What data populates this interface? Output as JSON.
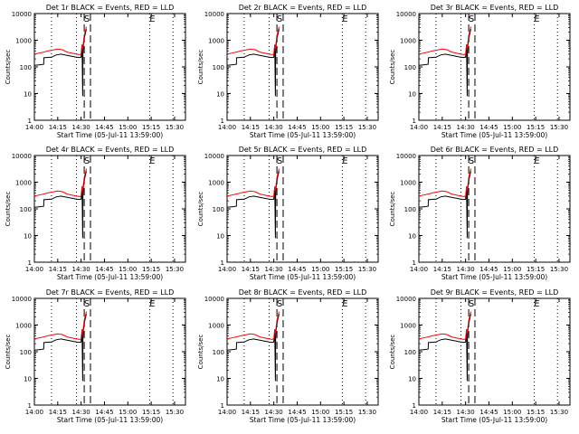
{
  "colors": {
    "events": "#000000",
    "lld": "#ff0000",
    "frame": "#000000"
  },
  "chart_data": [
    {
      "type": "line",
      "title": "Det 1r BLACK = Events, RED = LLD"
    },
    {
      "type": "line",
      "title": "Det 2r BLACK = Events, RED = LLD"
    },
    {
      "type": "line",
      "title": "Det 3r BLACK = Events, RED = LLD"
    },
    {
      "type": "line",
      "title": "Det 4r BLACK = Events, RED = LLD"
    },
    {
      "type": "line",
      "title": "Det 5r BLACK = Events, RED = LLD"
    },
    {
      "type": "line",
      "title": "Det 6r BLACK = Events, RED = LLD"
    },
    {
      "type": "line",
      "title": "Det 7r BLACK = Events, RED = LLD"
    },
    {
      "type": "line",
      "title": "Det 8r BLACK = Events, RED = LLD"
    },
    {
      "type": "line",
      "title": "Det 9r BLACK = Events, RED = LLD"
    }
  ],
  "shared": {
    "xlabel": "Start Time (05-Jul-11 13:59:00)",
    "ylabel": "Counts/sec",
    "x_ticks": [
      "14:00",
      "14:15",
      "14:30",
      "14:45",
      "15:00",
      "15:15",
      "15:30"
    ],
    "x_tick_minutes": [
      0,
      15,
      30,
      45,
      60,
      75,
      90
    ],
    "xlim_minutes": [
      0,
      97
    ],
    "y_ticks": [
      "1",
      "10",
      "100",
      "1000",
      "10000"
    ],
    "ylim": [
      1,
      10000
    ],
    "y_scale": "log",
    "markers": [
      {
        "label": "S",
        "minutes": 32,
        "style": "dashed"
      },
      {
        "label": "",
        "minutes": 36,
        "style": "dashed"
      },
      {
        "label": "",
        "minutes": 11,
        "style": "dotted"
      },
      {
        "label": "",
        "minutes": 27,
        "style": "dotted"
      },
      {
        "label": "E",
        "minutes": 74,
        "style": "dotted"
      },
      {
        "label": "",
        "minutes": 89,
        "style": "dotted"
      }
    ],
    "series": [
      {
        "name": "Events",
        "color": "#000000",
        "x": [
          0,
          3,
          6,
          6.1,
          11,
          14,
          17,
          21,
          24,
          27,
          29,
          30,
          30.6,
          31,
          31.2,
          31.4,
          31.8,
          32.2,
          32.8,
          33.4
        ],
        "y": [
          115,
          120,
          125,
          220,
          230,
          280,
          300,
          270,
          250,
          230,
          225,
          230,
          600,
          8,
          300,
          600,
          900,
          1300,
          1900,
          2600
        ]
      },
      {
        "name": "LLD",
        "color": "#ff0000",
        "x": [
          0,
          3,
          6,
          9,
          12,
          15,
          18,
          21,
          24,
          27,
          29,
          30,
          30.6,
          31,
          31.4,
          31.8,
          32.2,
          32.8,
          33.4
        ],
        "y": [
          300,
          330,
          360,
          400,
          430,
          470,
          440,
          360,
          330,
          300,
          290,
          300,
          700,
          500,
          800,
          1200,
          1700,
          2300,
          3200
        ]
      }
    ]
  }
}
